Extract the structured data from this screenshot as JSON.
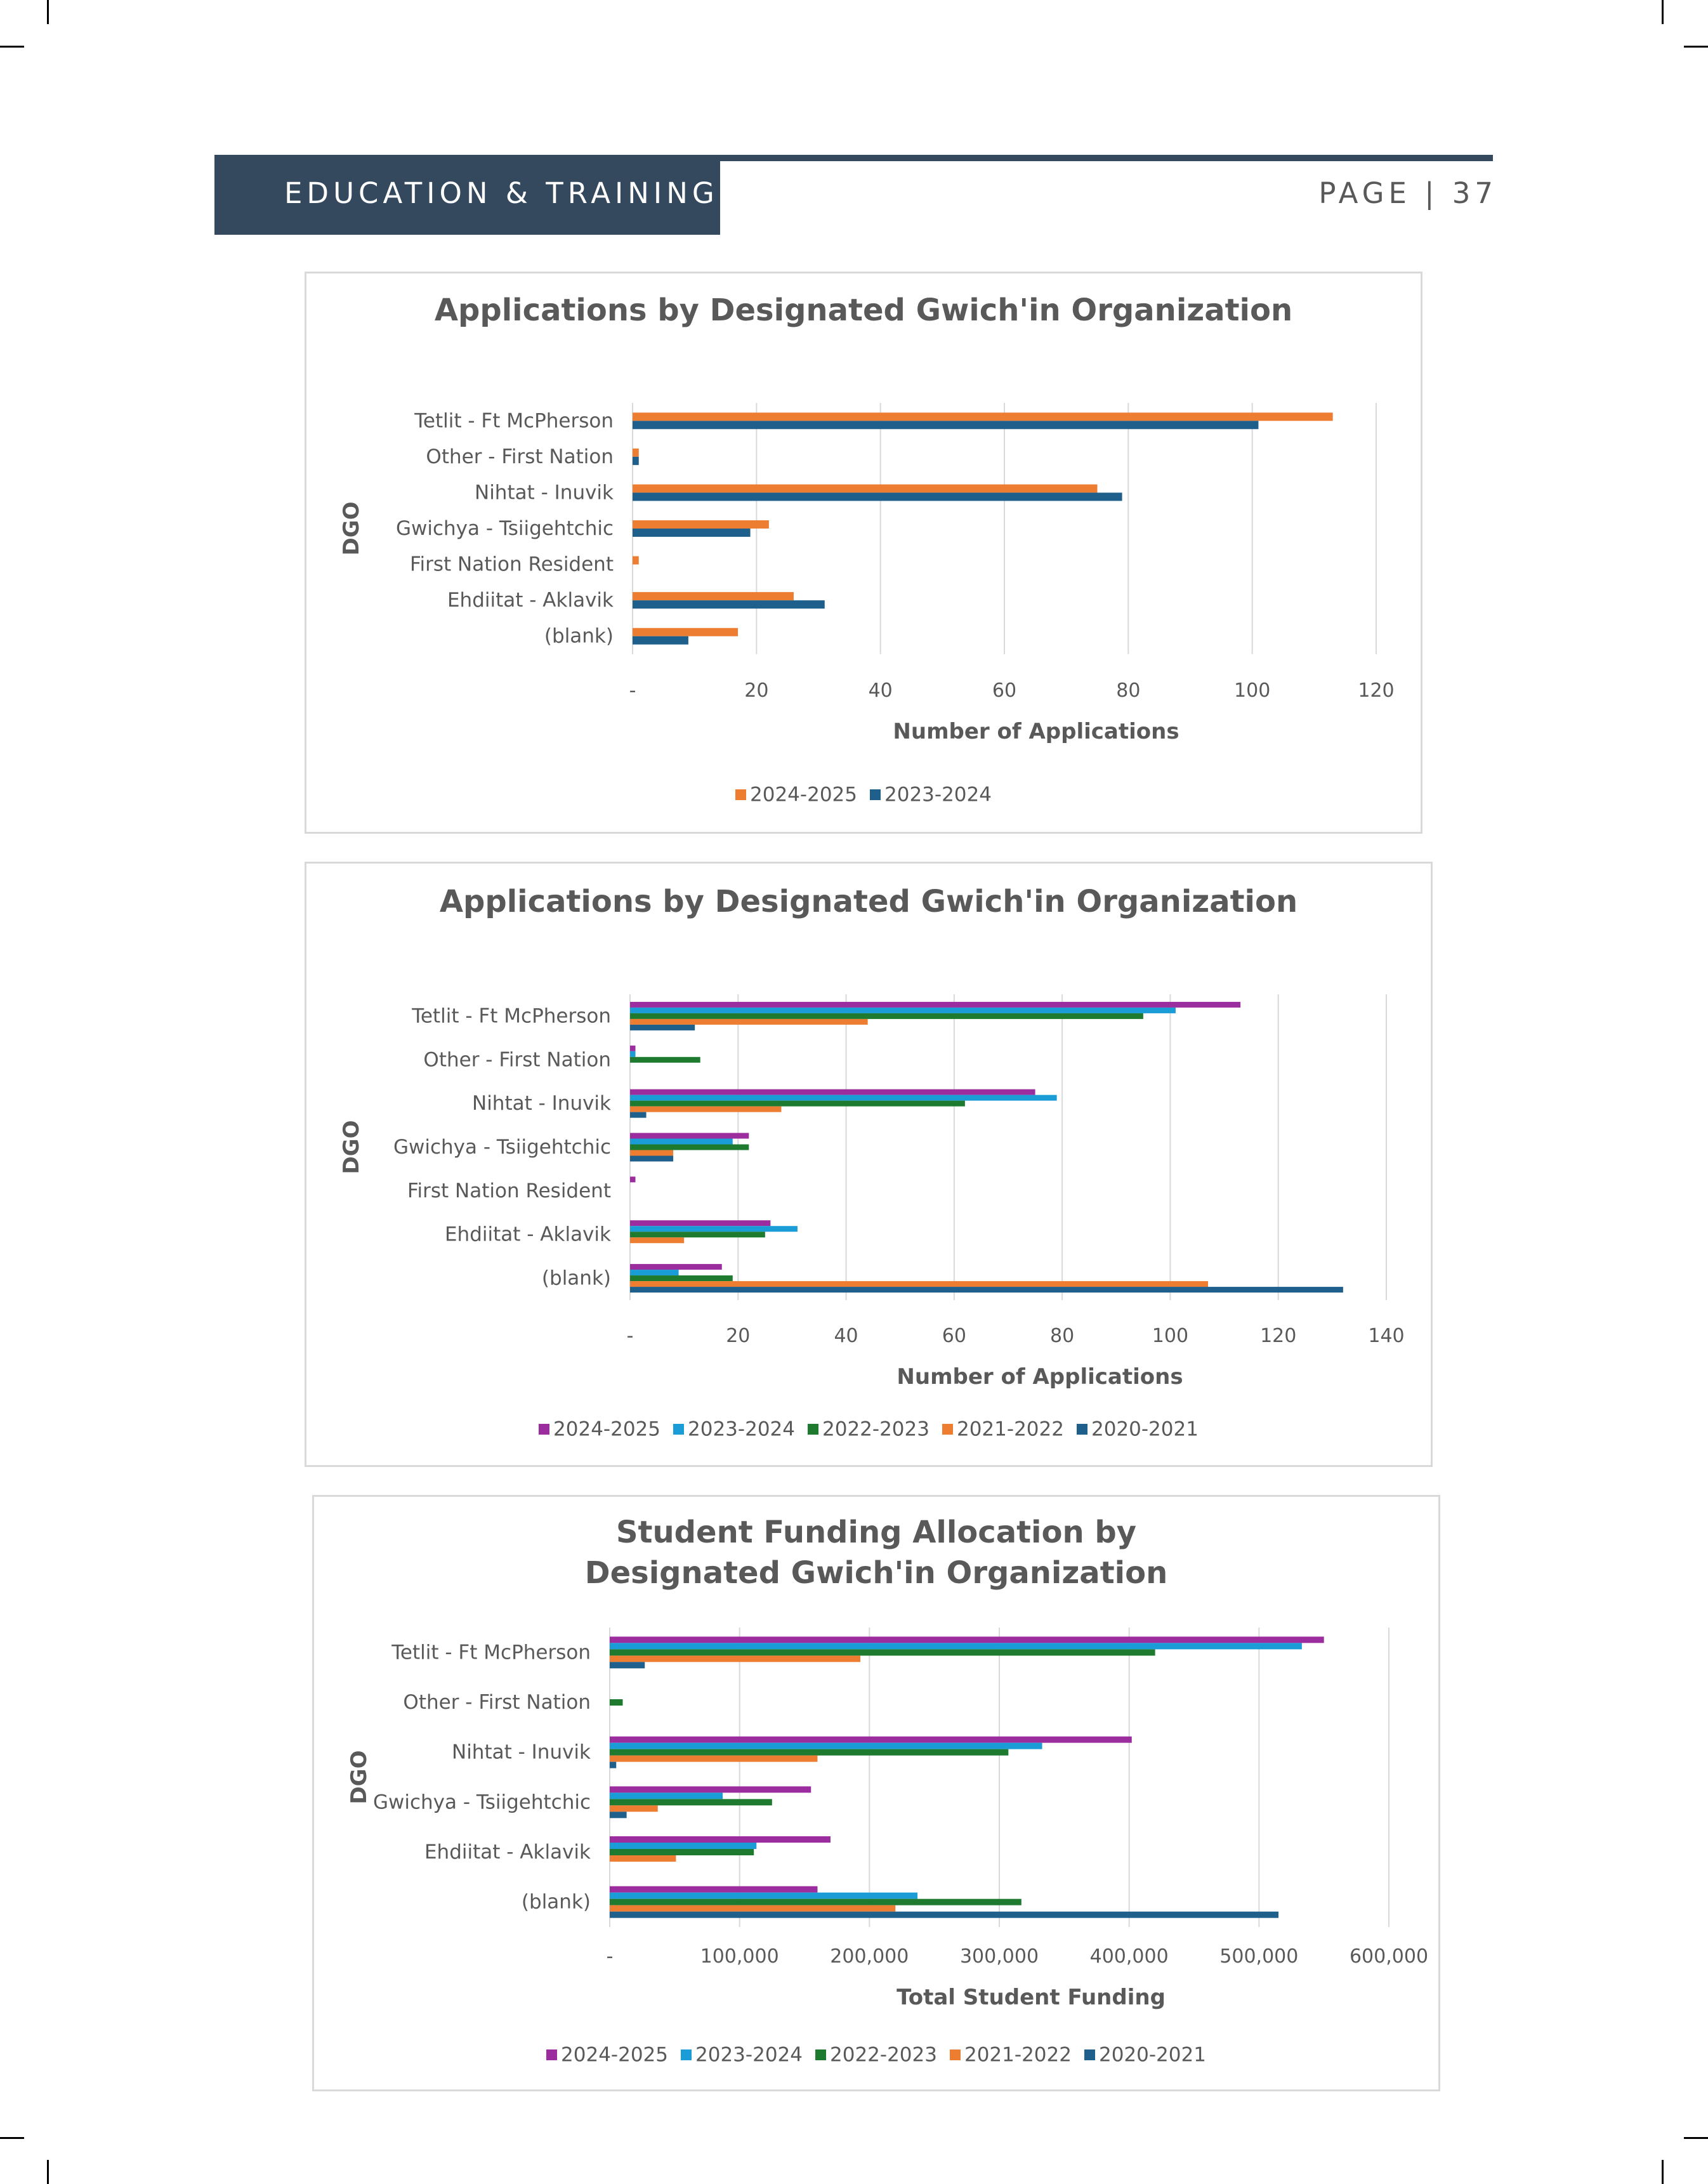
{
  "header": {
    "section_title": "EDUCATION & TRAINING",
    "page_label": "PAGE | 37"
  },
  "colors": {
    "header_bg": "#34495e",
    "orange": "#ED7D31",
    "dark_blue": "#1F5F8B",
    "magenta": "#9B2D9E",
    "light_blue": "#1A9CD7",
    "green": "#1E7A2E"
  },
  "chart_data": [
    {
      "type": "bar",
      "orientation": "horizontal",
      "title": "Applications by Designated Gwich'in Organization",
      "xlabel": "Number of Applications",
      "ylabel": "DGO",
      "categories": [
        "Tetlit - Ft McPherson",
        "Other - First Nation",
        "Nihtat - Inuvik",
        "Gwichya - Tsiigehtchic",
        "First Nation Resident",
        "Ehdiitat - Aklavik",
        "(blank)"
      ],
      "xlim": [
        0,
        120
      ],
      "xticks": [
        "-",
        "20",
        "40",
        "60",
        "80",
        "100",
        "120"
      ],
      "legend_position": "bottom",
      "series": [
        {
          "name": "2024-2025",
          "color": "#ED7D31",
          "values": [
            113,
            1,
            75,
            22,
            1,
            26,
            17
          ]
        },
        {
          "name": "2023-2024",
          "color": "#1F5F8B",
          "values": [
            101,
            1,
            79,
            19,
            0,
            31,
            9
          ]
        }
      ]
    },
    {
      "type": "bar",
      "orientation": "horizontal",
      "title": "Applications by Designated Gwich'in Organization",
      "xlabel": "Number of Applications",
      "ylabel": "DGO",
      "categories": [
        "Tetlit - Ft McPherson",
        "Other - First Nation",
        "Nihtat - Inuvik",
        "Gwichya - Tsiigehtchic",
        "First Nation Resident",
        "Ehdiitat - Aklavik",
        "(blank)"
      ],
      "xlim": [
        0,
        140
      ],
      "xticks": [
        "-",
        "20",
        "40",
        "60",
        "80",
        "100",
        "120",
        "140"
      ],
      "legend_position": "bottom",
      "series": [
        {
          "name": "2024-2025",
          "color": "#9B2D9E",
          "values": [
            113,
            1,
            75,
            22,
            1,
            26,
            17
          ]
        },
        {
          "name": "2023-2024",
          "color": "#1A9CD7",
          "values": [
            101,
            1,
            79,
            19,
            0,
            31,
            9
          ]
        },
        {
          "name": "2022-2023",
          "color": "#1E7A2E",
          "values": [
            95,
            13,
            62,
            22,
            0,
            25,
            19
          ]
        },
        {
          "name": "2021-2022",
          "color": "#ED7D31",
          "values": [
            44,
            0,
            28,
            8,
            0,
            10,
            107
          ]
        },
        {
          "name": "2020-2021",
          "color": "#1F5F8B",
          "values": [
            12,
            0,
            3,
            8,
            0,
            0,
            132
          ]
        }
      ]
    },
    {
      "type": "bar",
      "orientation": "horizontal",
      "title": "Student Funding Allocation by Designated Gwich'in Organization",
      "xlabel": "Total Student Funding",
      "ylabel": "DGO",
      "categories": [
        "Tetlit - Ft McPherson",
        "Other - First Nation",
        "Nihtat - Inuvik",
        "Gwichya - Tsiigehtchic",
        "Ehdiitat - Aklavik",
        "(blank)"
      ],
      "xlim": [
        0,
        600000
      ],
      "xticks": [
        "-",
        "100,000",
        "200,000",
        "300,000",
        "400,000",
        "500,000",
        "600,000"
      ],
      "legend_position": "bottom",
      "series": [
        {
          "name": "2024-2025",
          "color": "#9B2D9E",
          "values": [
            550000,
            0,
            402000,
            155000,
            170000,
            160000
          ]
        },
        {
          "name": "2023-2024",
          "color": "#1A9CD7",
          "values": [
            533000,
            0,
            333000,
            87000,
            113000,
            237000
          ]
        },
        {
          "name": "2022-2023",
          "color": "#1E7A2E",
          "values": [
            420000,
            10000,
            307000,
            125000,
            111000,
            317000
          ]
        },
        {
          "name": "2021-2022",
          "color": "#ED7D31",
          "values": [
            193000,
            0,
            160000,
            37000,
            51000,
            220000
          ]
        },
        {
          "name": "2020-2021",
          "color": "#1F5F8B",
          "values": [
            27000,
            0,
            5000,
            13000,
            0,
            515000
          ]
        }
      ]
    }
  ]
}
